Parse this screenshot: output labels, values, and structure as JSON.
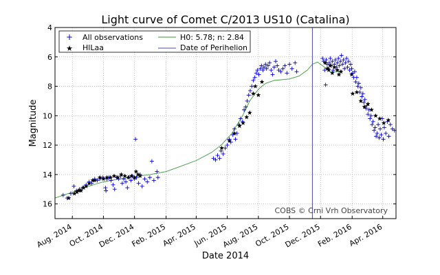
{
  "chart_data": {
    "type": "scatter",
    "title": "Light curve of Comet C/2013 US10 (Catalina)",
    "xlabel": "Date 2014",
    "ylabel": "Magnitude",
    "xlim": [
      "2014-06-28",
      "2016-04-27"
    ],
    "ylim": [
      4,
      17
    ],
    "y_inverted": true,
    "grid": true,
    "legend_position": "top",
    "credit": "COBS © Crni Vrh Observatory",
    "x_ticks": [
      {
        "date": "2014-08-01",
        "label": "Aug. 2014"
      },
      {
        "date": "2014-10-01",
        "label": "Oct. 2014"
      },
      {
        "date": "2014-12-01",
        "label": "Dec. 2014"
      },
      {
        "date": "2015-02-01",
        "label": "Feb. 2015"
      },
      {
        "date": "2015-04-01",
        "label": "Apr. 2015"
      },
      {
        "date": "2015-06-01",
        "label": "Jun. 2015"
      },
      {
        "date": "2015-08-01",
        "label": "Aug. 2015"
      },
      {
        "date": "2015-10-01",
        "label": "Oct. 2015"
      },
      {
        "date": "2015-12-01",
        "label": "Dec. 2015"
      },
      {
        "date": "2016-02-01",
        "label": "Feb. 2016"
      },
      {
        "date": "2016-04-01",
        "label": "Apr. 2016"
      }
    ],
    "y_ticks": [
      4,
      6,
      8,
      10,
      12,
      14,
      16
    ],
    "series": [
      {
        "name": "All observations",
        "marker": "plus",
        "color": "#0000cc",
        "points": [
          [
            "2014-07-14",
            15.4
          ],
          [
            "2014-07-22",
            15.6
          ],
          [
            "2014-07-29",
            15.3
          ],
          [
            "2014-08-04",
            14.8
          ],
          [
            "2014-08-09",
            15.1
          ],
          [
            "2014-08-15",
            15.0
          ],
          [
            "2014-08-21",
            14.9
          ],
          [
            "2014-08-28",
            14.7
          ],
          [
            "2014-09-03",
            14.5
          ],
          [
            "2014-09-08",
            14.6
          ],
          [
            "2014-09-14",
            14.3
          ],
          [
            "2014-09-19",
            14.4
          ],
          [
            "2014-09-24",
            14.3
          ],
          [
            "2014-09-30",
            14.2
          ],
          [
            "2014-10-05",
            14.9
          ],
          [
            "2014-10-06",
            15.1
          ],
          [
            "2014-10-08",
            14.3
          ],
          [
            "2014-10-12",
            14.2
          ],
          [
            "2014-10-16",
            14.4
          ],
          [
            "2014-10-20",
            14.7
          ],
          [
            "2014-10-23",
            15.0
          ],
          [
            "2014-10-27",
            14.2
          ],
          [
            "2014-10-31",
            14.3
          ],
          [
            "2014-11-04",
            14.1
          ],
          [
            "2014-11-07",
            14.6
          ],
          [
            "2014-11-10",
            14.3
          ],
          [
            "2014-11-14",
            14.5
          ],
          [
            "2014-11-17",
            14.9
          ],
          [
            "2014-11-20",
            14.2
          ],
          [
            "2014-11-24",
            14.4
          ],
          [
            "2014-11-27",
            14.1
          ],
          [
            "2014-12-01",
            14.3
          ],
          [
            "2014-12-03",
            11.6
          ],
          [
            "2014-12-05",
            14.2
          ],
          [
            "2014-12-09",
            14.6
          ],
          [
            "2014-12-12",
            14.0
          ],
          [
            "2014-12-16",
            14.8
          ],
          [
            "2014-12-21",
            14.3
          ],
          [
            "2014-12-26",
            14.5
          ],
          [
            "2014-12-31",
            14.2
          ],
          [
            "2015-01-04",
            13.1
          ],
          [
            "2015-01-08",
            14.4
          ],
          [
            "2015-01-14",
            13.8
          ],
          [
            "2015-01-16",
            14.2
          ],
          [
            "2015-05-05",
            12.9
          ],
          [
            "2015-05-09",
            13.0
          ],
          [
            "2015-05-13",
            12.7
          ],
          [
            "2015-05-17",
            12.9
          ],
          [
            "2015-05-20",
            12.4
          ],
          [
            "2015-05-24",
            12.6
          ],
          [
            "2015-05-28",
            12.2
          ],
          [
            "2015-06-01",
            12.0
          ],
          [
            "2015-06-05",
            11.6
          ],
          [
            "2015-06-08",
            11.8
          ],
          [
            "2015-06-12",
            11.3
          ],
          [
            "2015-06-15",
            10.9
          ],
          [
            "2015-06-17",
            11.6
          ],
          [
            "2015-06-20",
            11.2
          ],
          [
            "2015-06-24",
            10.6
          ],
          [
            "2015-06-27",
            10.2
          ],
          [
            "2015-07-01",
            10.4
          ],
          [
            "2015-07-04",
            9.6
          ],
          [
            "2015-07-07",
            9.4
          ],
          [
            "2015-07-10",
            9.0
          ],
          [
            "2015-07-13",
            8.6
          ],
          [
            "2015-07-16",
            8.3
          ],
          [
            "2015-07-19",
            8.0
          ],
          [
            "2015-07-22",
            7.6
          ],
          [
            "2015-07-25",
            7.4
          ],
          [
            "2015-07-28",
            7.1
          ],
          [
            "2015-07-30",
            6.9
          ],
          [
            "2015-08-02",
            7.2
          ],
          [
            "2015-08-05",
            6.8
          ],
          [
            "2015-08-07",
            6.6
          ],
          [
            "2015-08-10",
            6.9
          ],
          [
            "2015-08-12",
            6.7
          ],
          [
            "2015-08-15",
            6.5
          ],
          [
            "2015-08-17",
            6.8
          ],
          [
            "2015-08-20",
            6.6
          ],
          [
            "2015-08-23",
            6.4
          ],
          [
            "2015-08-26",
            6.9
          ],
          [
            "2015-08-29",
            7.2
          ],
          [
            "2015-09-01",
            6.7
          ],
          [
            "2015-09-04",
            6.3
          ],
          [
            "2015-09-07",
            6.6
          ],
          [
            "2015-09-10",
            6.9
          ],
          [
            "2015-09-14",
            7.0
          ],
          [
            "2015-09-18",
            6.8
          ],
          [
            "2015-09-22",
            6.6
          ],
          [
            "2015-09-26",
            7.1
          ],
          [
            "2015-10-01",
            6.5
          ],
          [
            "2015-10-06",
            6.8
          ],
          [
            "2015-10-12",
            6.4
          ],
          [
            "2015-10-15",
            7.0
          ],
          [
            "2015-12-05",
            6.1
          ],
          [
            "2015-12-07",
            6.3
          ],
          [
            "2015-12-09",
            6.9
          ],
          [
            "2015-12-11",
            7.9
          ],
          [
            "2015-12-12",
            6.2
          ],
          [
            "2015-12-14",
            6.5
          ],
          [
            "2015-12-16",
            6.8
          ],
          [
            "2015-12-18",
            6.4
          ],
          [
            "2015-12-20",
            6.1
          ],
          [
            "2015-12-22",
            6.6
          ],
          [
            "2015-12-24",
            6.3
          ],
          [
            "2015-12-26",
            6.9
          ],
          [
            "2015-12-28",
            6.5
          ],
          [
            "2015-12-30",
            6.2
          ],
          [
            "2016-01-01",
            6.7
          ],
          [
            "2016-01-03",
            6.4
          ],
          [
            "2016-01-05",
            6.1
          ],
          [
            "2016-01-07",
            6.6
          ],
          [
            "2016-01-09",
            6.3
          ],
          [
            "2016-01-11",
            5.9
          ],
          [
            "2016-01-13",
            6.5
          ],
          [
            "2016-01-15",
            6.2
          ],
          [
            "2016-01-17",
            6.8
          ],
          [
            "2016-01-19",
            6.4
          ],
          [
            "2016-01-21",
            6.1
          ],
          [
            "2016-01-23",
            6.7
          ],
          [
            "2016-01-25",
            6.3
          ],
          [
            "2016-01-27",
            6.9
          ],
          [
            "2016-01-29",
            6.5
          ],
          [
            "2016-01-31",
            6.8
          ],
          [
            "2016-02-02",
            7.1
          ],
          [
            "2016-02-04",
            7.4
          ],
          [
            "2016-02-06",
            7.0
          ],
          [
            "2016-02-08",
            7.7
          ],
          [
            "2016-02-10",
            7.4
          ],
          [
            "2016-02-12",
            8.0
          ],
          [
            "2016-02-14",
            7.8
          ],
          [
            "2016-02-16",
            8.4
          ],
          [
            "2016-02-18",
            8.1
          ],
          [
            "2016-02-20",
            8.7
          ],
          [
            "2016-02-22",
            8.5
          ],
          [
            "2016-02-24",
            9.1
          ],
          [
            "2016-02-26",
            8.9
          ],
          [
            "2016-02-28",
            9.5
          ],
          [
            "2016-03-01",
            9.3
          ],
          [
            "2016-03-03",
            9.9
          ],
          [
            "2016-03-05",
            9.6
          ],
          [
            "2016-03-07",
            10.2
          ],
          [
            "2016-03-09",
            10.0
          ],
          [
            "2016-03-11",
            10.6
          ],
          [
            "2016-03-13",
            10.4
          ],
          [
            "2016-03-15",
            11.0
          ],
          [
            "2016-03-17",
            10.8
          ],
          [
            "2016-03-19",
            11.4
          ],
          [
            "2016-03-21",
            11.2
          ],
          [
            "2016-03-23",
            10.6
          ],
          [
            "2016-03-25",
            11.5
          ],
          [
            "2016-03-27",
            10.9
          ],
          [
            "2016-03-29",
            11.3
          ],
          [
            "2016-03-31",
            10.2
          ],
          [
            "2016-04-02",
            11.6
          ],
          [
            "2016-04-04",
            10.8
          ],
          [
            "2016-04-07",
            11.2
          ],
          [
            "2016-04-10",
            10.4
          ],
          [
            "2016-04-13",
            11.4
          ],
          [
            "2016-04-16",
            10.6
          ],
          [
            "2016-04-20",
            10.9
          ],
          [
            "2016-04-24",
            11.0
          ]
        ]
      },
      {
        "name": "HlLaa",
        "marker": "star",
        "color": "#000000",
        "points": [
          [
            "2014-07-25",
            15.6
          ],
          [
            "2014-08-05",
            15.3
          ],
          [
            "2014-08-10",
            15.2
          ],
          [
            "2014-08-14",
            15.1
          ],
          [
            "2014-08-18",
            15.1
          ],
          [
            "2014-08-23",
            14.9
          ],
          [
            "2014-08-28",
            14.8
          ],
          [
            "2014-09-03",
            14.6
          ],
          [
            "2014-09-10",
            14.4
          ],
          [
            "2014-09-14",
            14.4
          ],
          [
            "2014-09-24",
            14.2
          ],
          [
            "2014-10-01",
            14.3
          ],
          [
            "2014-10-08",
            14.2
          ],
          [
            "2014-10-15",
            14.2
          ],
          [
            "2014-10-22",
            14.1
          ],
          [
            "2014-10-29",
            14.2
          ],
          [
            "2014-11-05",
            14.0
          ],
          [
            "2014-11-12",
            14.1
          ],
          [
            "2014-11-19",
            14.2
          ],
          [
            "2014-11-25",
            14.1
          ],
          [
            "2014-12-01",
            14.2
          ],
          [
            "2014-12-04",
            13.8
          ],
          [
            "2014-12-08",
            14.0
          ],
          [
            "2014-12-12",
            14.1
          ],
          [
            "2015-05-21",
            12.2
          ],
          [
            "2015-06-05",
            11.7
          ],
          [
            "2015-06-15",
            11.2
          ],
          [
            "2015-06-25",
            10.7
          ],
          [
            "2015-07-02",
            10.5
          ],
          [
            "2015-07-09",
            10.1
          ],
          [
            "2015-07-15",
            9.8
          ],
          [
            "2015-07-22",
            8.5
          ],
          [
            "2015-07-26",
            8.0
          ],
          [
            "2015-08-01",
            8.6
          ],
          [
            "2015-08-08",
            7.7
          ],
          [
            "2015-12-10",
            6.4
          ],
          [
            "2015-12-14",
            6.8
          ],
          [
            "2015-12-17",
            6.9
          ],
          [
            "2015-12-20",
            6.6
          ],
          [
            "2015-12-24",
            7.1
          ],
          [
            "2015-12-28",
            6.7
          ],
          [
            "2016-01-03",
            6.9
          ],
          [
            "2016-01-06",
            7.2
          ],
          [
            "2016-01-10",
            7.0
          ],
          [
            "2016-01-31",
            7.2
          ],
          [
            "2016-02-02",
            8.5
          ],
          [
            "2016-02-10",
            8.4
          ],
          [
            "2016-02-18",
            9.0
          ],
          [
            "2016-02-25",
            9.4
          ],
          [
            "2016-03-03",
            9.2
          ],
          [
            "2016-03-10",
            9.6
          ],
          [
            "2016-03-18",
            10.0
          ],
          [
            "2016-03-26",
            10.2
          ],
          [
            "2016-04-03",
            10.5
          ],
          [
            "2016-04-12",
            10.3
          ]
        ]
      },
      {
        "name": "H0: 5.78; n: 2.84",
        "line": "solid",
        "color": "#3a9a3a",
        "points": [
          [
            "2014-06-28",
            15.6
          ],
          [
            "2014-08-01",
            15.2
          ],
          [
            "2014-09-01",
            14.8
          ],
          [
            "2014-10-01",
            14.5
          ],
          [
            "2014-11-01",
            14.3
          ],
          [
            "2014-12-01",
            14.15
          ],
          [
            "2015-01-01",
            14.0
          ],
          [
            "2015-02-01",
            13.8
          ],
          [
            "2015-03-01",
            13.45
          ],
          [
            "2015-04-01",
            13.05
          ],
          [
            "2015-05-01",
            12.5
          ],
          [
            "2015-05-20",
            12.0
          ],
          [
            "2015-06-10",
            11.2
          ],
          [
            "2015-07-01",
            10.0
          ],
          [
            "2015-07-15",
            9.0
          ],
          [
            "2015-08-01",
            8.2
          ],
          [
            "2015-08-15",
            7.8
          ],
          [
            "2015-09-01",
            7.6
          ],
          [
            "2015-10-01",
            7.5
          ],
          [
            "2015-10-20",
            7.3
          ],
          [
            "2015-11-05",
            6.9
          ],
          [
            "2015-11-15",
            6.5
          ],
          [
            "2015-11-25",
            6.35
          ],
          [
            "2015-12-05",
            6.6
          ],
          [
            "2015-12-20",
            7.0
          ],
          [
            "2016-01-10",
            7.0
          ]
        ]
      },
      {
        "name": "Date of Perihelion",
        "line": "vertical",
        "color": "#4a4aa0",
        "date": "2015-11-15"
      }
    ]
  }
}
